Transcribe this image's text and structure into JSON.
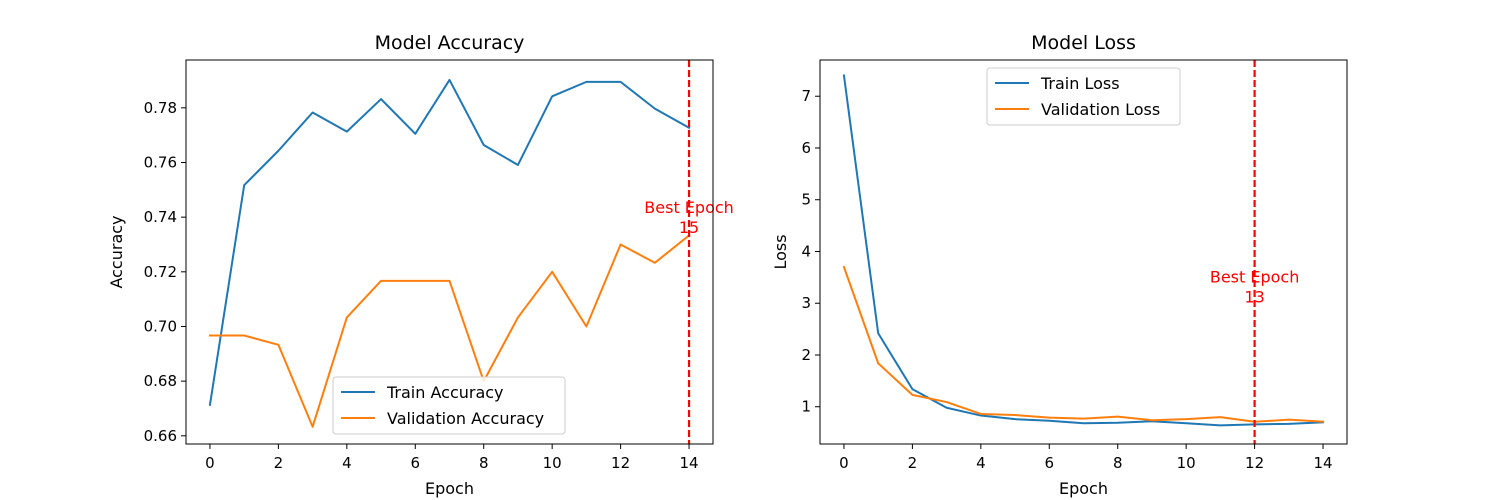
{
  "colors": {
    "series1": "#1f77b4",
    "series2": "#ff7f0e",
    "best_line": "#ff0000"
  },
  "chart_data": [
    {
      "type": "line",
      "title": "Model Accuracy",
      "xlabel": "Epoch",
      "ylabel": "Accuracy",
      "xlim": [
        -0.7,
        14.7
      ],
      "ylim": [
        0.657,
        0.7975
      ],
      "xticks": [
        0,
        2,
        4,
        6,
        8,
        10,
        12,
        14
      ],
      "yticks": [
        0.66,
        0.68,
        0.7,
        0.72,
        0.74,
        0.76,
        0.78
      ],
      "ytick_labels": [
        "0.66",
        "0.68",
        "0.70",
        "0.72",
        "0.74",
        "0.76",
        "0.78"
      ],
      "x": [
        0,
        1,
        2,
        3,
        4,
        5,
        6,
        7,
        8,
        9,
        10,
        11,
        12,
        13,
        14
      ],
      "series": [
        {
          "name": "Train Accuracy",
          "color": "#1f77b4",
          "values": [
            0.6713,
            0.7517,
            0.7643,
            0.7783,
            0.7713,
            0.7832,
            0.7705,
            0.7902,
            0.7664,
            0.7591,
            0.7842,
            0.7895,
            0.7895,
            0.7797,
            0.7727
          ]
        },
        {
          "name": "Validation Accuracy",
          "color": "#ff7f0e",
          "values": [
            0.6967,
            0.6967,
            0.6933,
            0.6633,
            0.7033,
            0.7167,
            0.7167,
            0.7167,
            0.68,
            0.7033,
            0.72,
            0.7,
            0.73,
            0.7233,
            0.7333
          ]
        }
      ],
      "best_epoch": {
        "x": 14,
        "label_line1": "Best Epoch",
        "label_line2": "15",
        "label_y": 0.7415
      },
      "legend": "lower-center",
      "grid": false
    },
    {
      "type": "line",
      "title": "Model Loss",
      "xlabel": "Epoch",
      "ylabel": "Loss",
      "xlim": [
        -0.7,
        14.7
      ],
      "ylim": [
        0.28,
        7.7
      ],
      "xticks": [
        0,
        2,
        4,
        6,
        8,
        10,
        12,
        14
      ],
      "yticks": [
        1,
        2,
        3,
        4,
        5,
        6,
        7
      ],
      "ytick_labels": [
        "1",
        "2",
        "3",
        "4",
        "5",
        "6",
        "7"
      ],
      "x": [
        0,
        1,
        2,
        3,
        4,
        5,
        6,
        7,
        8,
        9,
        10,
        11,
        12,
        13,
        14
      ],
      "series": [
        {
          "name": "Train Loss",
          "color": "#1f77b4",
          "values": [
            7.4,
            2.42,
            1.34,
            0.98,
            0.83,
            0.76,
            0.73,
            0.68,
            0.69,
            0.72,
            0.68,
            0.64,
            0.66,
            0.67,
            0.7
          ]
        },
        {
          "name": "Validation Loss",
          "color": "#ff7f0e",
          "values": [
            3.7,
            1.84,
            1.23,
            1.09,
            0.86,
            0.84,
            0.79,
            0.77,
            0.81,
            0.74,
            0.76,
            0.8,
            0.71,
            0.75,
            0.71
          ]
        }
      ],
      "best_epoch": {
        "x": 12,
        "label_line1": "Best Epoch",
        "label_line2": "13",
        "label_y": 3.4
      },
      "legend": "upper-center",
      "grid": false
    }
  ]
}
